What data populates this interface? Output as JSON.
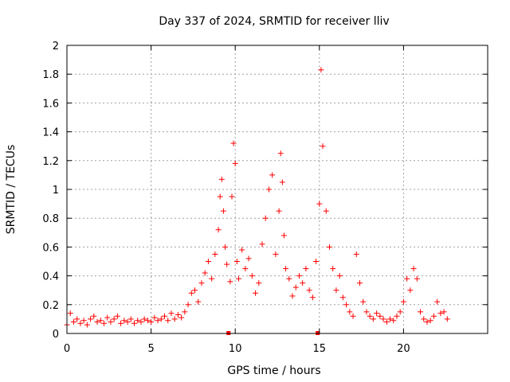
{
  "chart_data": {
    "type": "scatter",
    "title": "Day 337 of 2024, SRMTID for receiver lliv",
    "xlabel": "GPS time / hours",
    "ylabel": "SRMTID / TECUs",
    "xlim": [
      0,
      25
    ],
    "ylim": [
      0,
      2
    ],
    "xticks": [
      0,
      5,
      10,
      15,
      20
    ],
    "xtick_labels": [
      "0",
      "5",
      "10",
      "15",
      "20"
    ],
    "yticks": [
      0,
      0.2,
      0.4,
      0.6,
      0.8,
      1,
      1.2,
      1.4,
      1.6,
      1.8,
      2
    ],
    "ytick_labels": [
      "0",
      "0.2",
      "0.4",
      "0.6",
      "0.8",
      "1",
      "1.2",
      "1.4",
      "1.6",
      "1.8",
      "2"
    ],
    "grid": true,
    "marker": "plus",
    "series_color": "#ff0000",
    "data_gaps_markers_x": [
      9.6,
      14.9
    ],
    "series": [
      {
        "name": "SRMTID",
        "x": [
          0.0,
          0.2,
          0.4,
          0.6,
          0.8,
          1.0,
          1.2,
          1.4,
          1.6,
          1.8,
          2.0,
          2.2,
          2.4,
          2.6,
          2.8,
          3.0,
          3.2,
          3.4,
          3.6,
          3.8,
          4.0,
          4.2,
          4.4,
          4.6,
          4.8,
          5.0,
          5.2,
          5.4,
          5.6,
          5.8,
          6.0,
          6.2,
          6.4,
          6.6,
          6.8,
          7.0,
          7.2,
          7.4,
          7.6,
          7.8,
          8.0,
          8.2,
          8.4,
          8.6,
          8.8,
          9.0,
          9.1,
          9.2,
          9.3,
          9.4,
          9.5,
          9.7,
          9.8,
          9.9,
          10.0,
          10.1,
          10.2,
          10.4,
          10.6,
          10.8,
          11.0,
          11.2,
          11.4,
          11.6,
          11.8,
          12.0,
          12.2,
          12.4,
          12.6,
          12.7,
          12.8,
          12.9,
          13.0,
          13.2,
          13.4,
          13.6,
          13.8,
          14.0,
          14.2,
          14.4,
          14.6,
          14.8,
          15.0,
          15.1,
          15.2,
          15.4,
          15.6,
          15.8,
          16.0,
          16.2,
          16.4,
          16.6,
          16.8,
          17.0,
          17.2,
          17.4,
          17.6,
          17.8,
          18.0,
          18.2,
          18.4,
          18.6,
          18.8,
          19.0,
          19.2,
          19.4,
          19.6,
          19.8,
          20.0,
          20.2,
          20.4,
          20.6,
          20.8,
          21.0,
          21.2,
          21.4,
          21.6,
          21.8,
          22.0,
          22.2,
          22.4,
          22.6
        ],
        "values": [
          0.06,
          0.14,
          0.08,
          0.1,
          0.07,
          0.09,
          0.06,
          0.1,
          0.12,
          0.08,
          0.09,
          0.07,
          0.11,
          0.08,
          0.1,
          0.12,
          0.07,
          0.09,
          0.08,
          0.1,
          0.07,
          0.09,
          0.08,
          0.1,
          0.09,
          0.08,
          0.11,
          0.09,
          0.1,
          0.12,
          0.09,
          0.14,
          0.1,
          0.13,
          0.11,
          0.15,
          0.2,
          0.28,
          0.3,
          0.22,
          0.35,
          0.42,
          0.5,
          0.38,
          0.55,
          0.72,
          0.95,
          1.07,
          0.85,
          0.6,
          0.48,
          0.36,
          0.95,
          1.32,
          1.18,
          0.5,
          0.38,
          0.58,
          0.45,
          0.52,
          0.4,
          0.28,
          0.35,
          0.62,
          0.8,
          1.0,
          1.1,
          0.55,
          0.85,
          1.25,
          1.05,
          0.68,
          0.45,
          0.38,
          0.26,
          0.32,
          0.4,
          0.35,
          0.45,
          0.3,
          0.25,
          0.5,
          0.9,
          1.83,
          1.3,
          0.85,
          0.6,
          0.45,
          0.3,
          0.4,
          0.25,
          0.2,
          0.15,
          0.12,
          0.55,
          0.35,
          0.22,
          0.15,
          0.12,
          0.1,
          0.14,
          0.12,
          0.1,
          0.08,
          0.1,
          0.09,
          0.12,
          0.15,
          0.22,
          0.38,
          0.3,
          0.45,
          0.38,
          0.15,
          0.1,
          0.08,
          0.09,
          0.12,
          0.22,
          0.14,
          0.15,
          0.1
        ]
      }
    ]
  }
}
